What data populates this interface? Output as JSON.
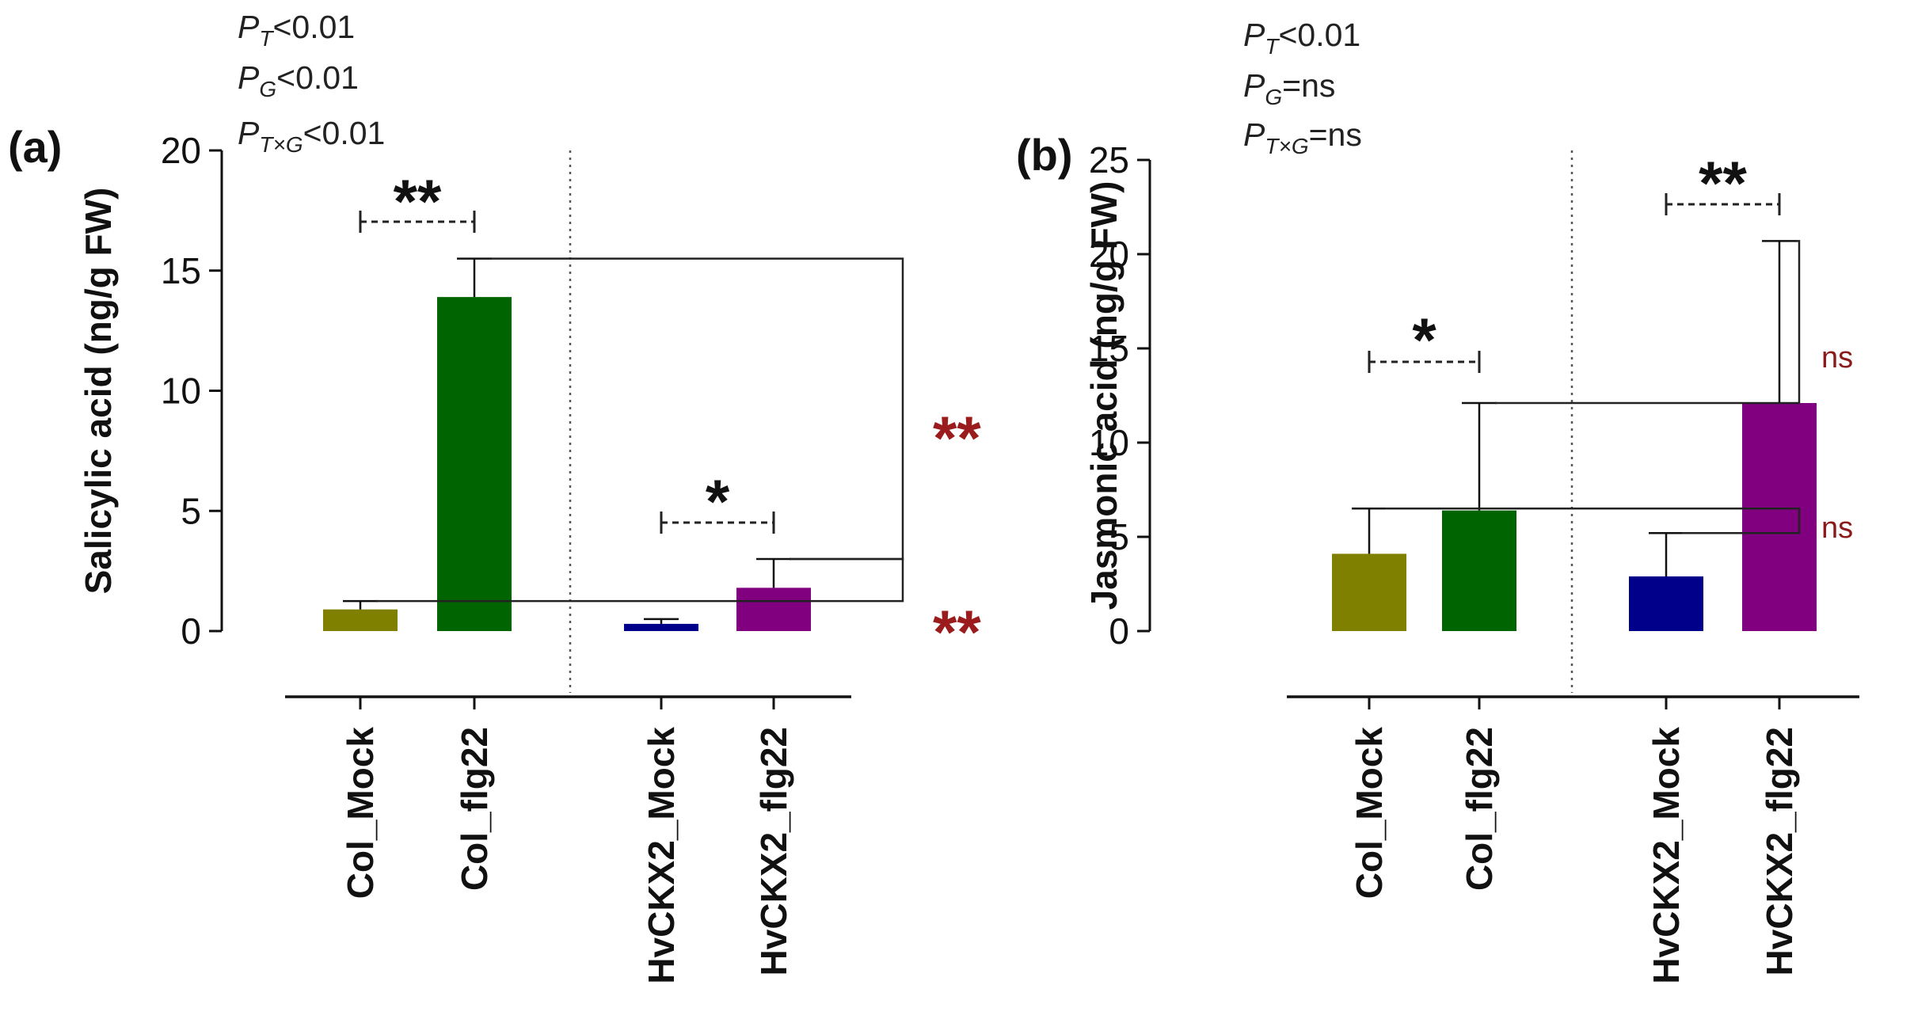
{
  "chart_data": [
    {
      "panel": "(a)",
      "type": "bar",
      "ylabel": "Salicylic acid (ng/g FW)",
      "ylim": [
        0,
        20
      ],
      "yticks": [
        0,
        5,
        10,
        15,
        20
      ],
      "categories": [
        "Col_Mock",
        "Col_flg22",
        "HvCKX2_Mock",
        "HvCKX2_flg22"
      ],
      "values": [
        0.9,
        13.9,
        0.3,
        1.8
      ],
      "errors": [
        0.35,
        1.6,
        0.2,
        1.2
      ],
      "colors": [
        "#808000",
        "#006400",
        "#00008b",
        "#800080"
      ],
      "stats_lines": [
        {
          "sym": "P",
          "sub": "T",
          "rest": "<0.01"
        },
        {
          "sym": "P",
          "sub": "G",
          "rest": "<0.01"
        },
        {
          "sym": "P",
          "sub": "T×G",
          "rest": "<0.01"
        }
      ],
      "annotations": [
        {
          "label": "**",
          "between": [
            0,
            1
          ],
          "color": "black"
        },
        {
          "label": "*",
          "between": [
            2,
            3
          ],
          "color": "black"
        },
        {
          "label": "**",
          "between": [
            1,
            3
          ],
          "color": "red"
        },
        {
          "label": "**",
          "between": [
            0,
            3
          ],
          "color": "red"
        }
      ]
    },
    {
      "panel": "(b)",
      "type": "bar",
      "ylabel": "Jasmonic acid (ng/g FW)",
      "ylim": [
        0,
        25
      ],
      "yticks": [
        0,
        5,
        10,
        15,
        20,
        25
      ],
      "categories": [
        "Col_Mock",
        "Col_flg22",
        "HvCKX2_Mock",
        "HvCKX2_flg22"
      ],
      "values": [
        4.1,
        6.4,
        2.9,
        12.1
      ],
      "errors": [
        2.4,
        5.7,
        2.3,
        8.6
      ],
      "colors": [
        "#808000",
        "#006400",
        "#00008b",
        "#800080"
      ],
      "stats_lines": [
        {
          "sym": "P",
          "sub": "T",
          "rest": "<0.01"
        },
        {
          "sym": "P",
          "sub": "G",
          "rest": "=ns"
        },
        {
          "sym": "P",
          "sub": "T×G",
          "rest": "=ns"
        }
      ],
      "annotations": [
        {
          "label": "*",
          "between": [
            0,
            1
          ],
          "color": "black"
        },
        {
          "label": "**",
          "between": [
            2,
            3
          ],
          "color": "black"
        },
        {
          "label": "ns",
          "between": [
            1,
            3
          ],
          "color": "red"
        },
        {
          "label": "ns",
          "between": [
            0,
            2
          ],
          "color": "red"
        }
      ]
    }
  ]
}
